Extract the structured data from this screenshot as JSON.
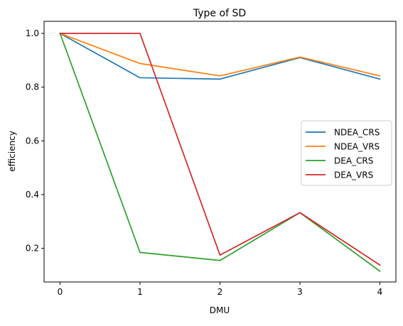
{
  "chart_data": {
    "type": "line",
    "title": "Type of SD",
    "xlabel": "DMU",
    "ylabel": "efficiency",
    "x": [
      0,
      1,
      2,
      3,
      4
    ],
    "xlim": [
      -0.2,
      4.2
    ],
    "ylim": [
      0.075,
      1.045
    ],
    "xticks": [
      "0",
      "1",
      "2",
      "3",
      "4"
    ],
    "yticks": [
      0.2,
      0.4,
      0.6,
      0.8,
      1.0
    ],
    "ytick_labels": [
      "0.2",
      "0.4",
      "0.6",
      "0.8",
      "1.0"
    ],
    "grid": false,
    "legend_position": "center-right",
    "series": [
      {
        "name": "NDEA_CRS",
        "color": "#1f77b4",
        "values": [
          1.0,
          0.835,
          0.83,
          0.91,
          0.83
        ]
      },
      {
        "name": "NDEA_VRS",
        "color": "#ff7f0e",
        "values": [
          1.0,
          0.888,
          0.842,
          0.912,
          0.842
        ]
      },
      {
        "name": "DEA_CRS",
        "color": "#2ca02c",
        "values": [
          1.0,
          0.185,
          0.155,
          0.333,
          0.115
        ]
      },
      {
        "name": "DEA_VRS",
        "color": "#d62728",
        "values": [
          1.0,
          1.0,
          0.175,
          0.333,
          0.138
        ]
      }
    ]
  }
}
